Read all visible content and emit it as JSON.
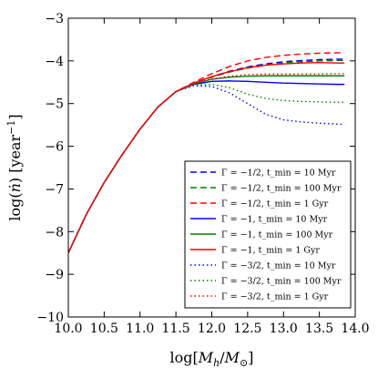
{
  "chart_data": {
    "type": "line",
    "xlabel": "log[M_h/M_⊙]",
    "ylabel": "log(ṅ) [year⁻¹]",
    "xlim": [
      10.0,
      14.0
    ],
    "ylim": [
      -10,
      -3
    ],
    "xticks": [
      "10.0",
      "10.5",
      "11.0",
      "11.5",
      "12.0",
      "12.5",
      "13.0",
      "13.5",
      "14.0"
    ],
    "yticks": [
      "−10",
      "−9",
      "−8",
      "−7",
      "−6",
      "−5",
      "−4",
      "−3"
    ],
    "grid": false,
    "legend_position": "bottom-right",
    "series": [
      {
        "name": "Γ = −1/2, t_min = 10 Myr",
        "color": "#0000ff",
        "style": "dashed",
        "x": [
          10.0,
          10.25,
          10.5,
          10.75,
          11.0,
          11.25,
          11.5,
          11.75,
          12.0,
          12.25,
          12.5,
          12.75,
          13.0,
          13.25,
          13.5,
          13.75,
          13.85
        ],
        "y": [
          -8.5,
          -7.6,
          -6.85,
          -6.2,
          -5.6,
          -5.08,
          -4.72,
          -4.52,
          -4.37,
          -4.24,
          -4.14,
          -4.07,
          -4.02,
          -3.99,
          -3.97,
          -3.96,
          -3.96
        ]
      },
      {
        "name": "Γ = −1/2, t_min = 100 Myr",
        "color": "#008000",
        "style": "dashed",
        "x": [
          10.0,
          10.25,
          10.5,
          10.75,
          11.0,
          11.25,
          11.5,
          11.75,
          12.0,
          12.25,
          12.5,
          12.75,
          13.0,
          13.25,
          13.5,
          13.75,
          13.85
        ],
        "y": [
          -8.5,
          -7.6,
          -6.85,
          -6.2,
          -5.6,
          -5.08,
          -4.72,
          -4.52,
          -4.38,
          -4.26,
          -4.17,
          -4.1,
          -4.05,
          -4.02,
          -4.0,
          -3.99,
          -3.99
        ]
      },
      {
        "name": "Γ = −1/2, t_min = 1 Gyr",
        "color": "#ff0000",
        "style": "dashed",
        "x": [
          10.0,
          10.25,
          10.5,
          10.75,
          11.0,
          11.25,
          11.5,
          11.75,
          12.0,
          12.25,
          12.5,
          12.75,
          13.0,
          13.25,
          13.5,
          13.75,
          13.85
        ],
        "y": [
          -8.5,
          -7.6,
          -6.85,
          -6.2,
          -5.6,
          -5.08,
          -4.72,
          -4.5,
          -4.3,
          -4.13,
          -4.0,
          -3.92,
          -3.87,
          -3.84,
          -3.82,
          -3.81,
          -3.81
        ]
      },
      {
        "name": "Γ = −1, t_min = 10 Myr",
        "color": "#0000ff",
        "style": "solid",
        "x": [
          10.0,
          10.25,
          10.5,
          10.75,
          11.0,
          11.25,
          11.5,
          11.75,
          12.0,
          12.25,
          12.5,
          12.75,
          13.0,
          13.25,
          13.5,
          13.75,
          13.85
        ],
        "y": [
          -8.5,
          -7.6,
          -6.85,
          -6.2,
          -5.6,
          -5.08,
          -4.72,
          -4.55,
          -4.48,
          -4.47,
          -4.48,
          -4.5,
          -4.52,
          -4.53,
          -4.54,
          -4.55,
          -4.55
        ]
      },
      {
        "name": "Γ = −1, t_min = 100 Myr",
        "color": "#008000",
        "style": "solid",
        "x": [
          10.0,
          10.25,
          10.5,
          10.75,
          11.0,
          11.25,
          11.5,
          11.75,
          12.0,
          12.25,
          12.5,
          12.75,
          13.0,
          13.25,
          13.5,
          13.75,
          13.85
        ],
        "y": [
          -8.5,
          -7.6,
          -6.85,
          -6.2,
          -5.6,
          -5.08,
          -4.72,
          -4.54,
          -4.43,
          -4.38,
          -4.36,
          -4.35,
          -4.35,
          -4.35,
          -4.35,
          -4.35,
          -4.35
        ]
      },
      {
        "name": "Γ = −1, t_min = 1 Gyr",
        "color": "#ff0000",
        "style": "solid",
        "x": [
          10.0,
          10.25,
          10.5,
          10.75,
          11.0,
          11.25,
          11.5,
          11.75,
          12.0,
          12.25,
          12.5,
          12.75,
          13.0,
          13.25,
          13.5,
          13.75,
          13.85
        ],
        "y": [
          -8.5,
          -7.6,
          -6.85,
          -6.2,
          -5.6,
          -5.08,
          -4.72,
          -4.52,
          -4.37,
          -4.25,
          -4.16,
          -4.1,
          -4.07,
          -4.05,
          -4.04,
          -4.05,
          -4.05
        ]
      },
      {
        "name": "Γ = −3/2, t_min = 10 Myr",
        "color": "#0000ff",
        "style": "dotted",
        "x": [
          10.0,
          10.25,
          10.5,
          10.75,
          11.0,
          11.25,
          11.5,
          11.75,
          12.0,
          12.25,
          12.5,
          12.75,
          13.0,
          13.25,
          13.5,
          13.75,
          13.85
        ],
        "y": [
          -8.5,
          -7.6,
          -6.85,
          -6.2,
          -5.6,
          -5.08,
          -4.72,
          -4.58,
          -4.6,
          -4.75,
          -5.0,
          -5.25,
          -5.38,
          -5.43,
          -5.46,
          -5.48,
          -5.49
        ]
      },
      {
        "name": "Γ = −3/2, t_min = 100 Myr",
        "color": "#008000",
        "style": "dotted",
        "x": [
          10.0,
          10.25,
          10.5,
          10.75,
          11.0,
          11.25,
          11.5,
          11.75,
          12.0,
          12.25,
          12.5,
          12.75,
          13.0,
          13.25,
          13.5,
          13.75,
          13.85
        ],
        "y": [
          -8.5,
          -7.6,
          -6.85,
          -6.2,
          -5.6,
          -5.08,
          -4.72,
          -4.57,
          -4.55,
          -4.63,
          -4.78,
          -4.88,
          -4.93,
          -4.95,
          -4.96,
          -4.97,
          -4.97
        ]
      },
      {
        "name": "Γ = −3/2, t_min = 1 Gyr",
        "color": "#ff0000",
        "style": "dotted",
        "x": [
          10.0,
          10.25,
          10.5,
          10.75,
          11.0,
          11.25,
          11.5,
          11.75,
          12.0,
          12.25,
          12.5,
          12.75,
          13.0,
          13.25,
          13.5,
          13.75,
          13.85
        ],
        "y": [
          -8.5,
          -7.6,
          -6.85,
          -6.2,
          -5.6,
          -5.08,
          -4.72,
          -4.53,
          -4.42,
          -4.36,
          -4.32,
          -4.31,
          -4.31,
          -4.31,
          -4.31,
          -4.3,
          -4.3
        ]
      }
    ]
  }
}
